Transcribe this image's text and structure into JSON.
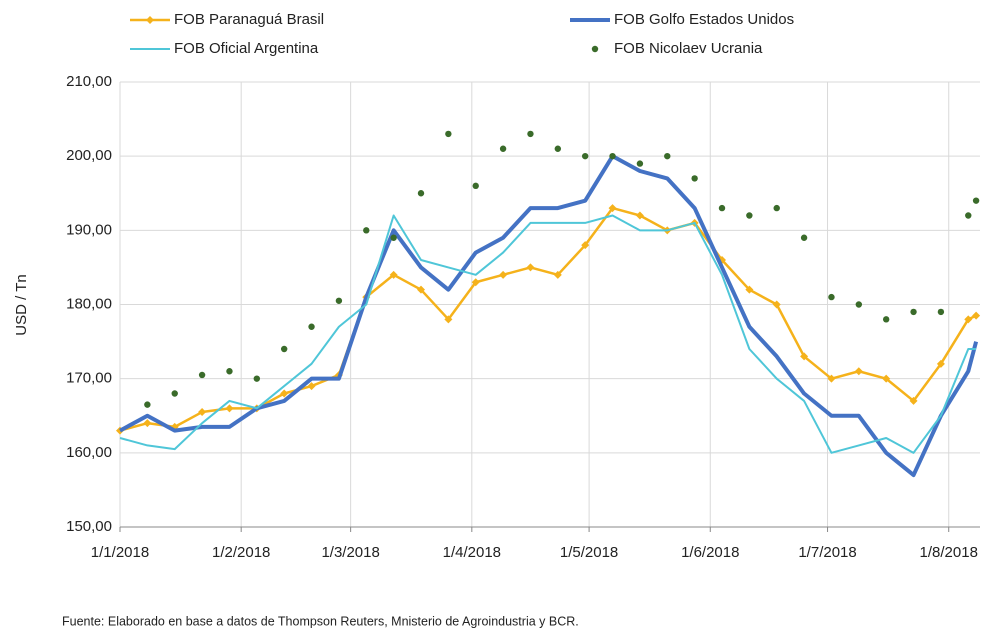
{
  "chart_data": {
    "type": "line",
    "y_label": "USD / Tn",
    "source": "Fuente: Elaborado en base a datos de Thompson Reuters, Mnisterio de Agroindustria y BCR.",
    "x": [
      "2018-01-01",
      "2018-01-08",
      "2018-01-15",
      "2018-01-22",
      "2018-01-29",
      "2018-02-05",
      "2018-02-12",
      "2018-02-19",
      "2018-02-26",
      "2018-03-05",
      "2018-03-12",
      "2018-03-19",
      "2018-03-26",
      "2018-04-02",
      "2018-04-09",
      "2018-04-16",
      "2018-04-23",
      "2018-04-30",
      "2018-05-07",
      "2018-05-14",
      "2018-05-21",
      "2018-05-28",
      "2018-06-04",
      "2018-06-11",
      "2018-06-18",
      "2018-06-25",
      "2018-07-02",
      "2018-07-09",
      "2018-07-16",
      "2018-07-23",
      "2018-07-30",
      "2018-08-06",
      "2018-08-08"
    ],
    "series": [
      {
        "name": "FOB Paranaguá Brasil",
        "color": "#f5b21b",
        "marker": "diamond",
        "values": [
          163,
          164,
          163.5,
          165.5,
          166,
          166,
          168,
          169,
          170.5,
          181,
          184,
          182,
          178,
          183,
          184,
          185,
          184,
          188,
          193,
          192,
          190,
          191,
          186,
          182,
          180,
          173,
          170,
          171,
          170,
          167,
          172,
          178,
          178.5
        ]
      },
      {
        "name": "FOB Golfo Estados Unidos",
        "color": "#4472c4",
        "marker": "none",
        "width": 4,
        "values": [
          163,
          165,
          163,
          163.5,
          163.5,
          166,
          167,
          170,
          170,
          181,
          190,
          185,
          182,
          187,
          189,
          193,
          193,
          194,
          200,
          198,
          197,
          193,
          185,
          177,
          173,
          168,
          165,
          165,
          160,
          157,
          165,
          171,
          175
        ]
      },
      {
        "name": "FOB Oficial Argentina",
        "color": "#4fc6d8",
        "marker": "none",
        "width": 2,
        "values": [
          162,
          161,
          160.5,
          164,
          167,
          166,
          169,
          172,
          177,
          180,
          192,
          186,
          185,
          184,
          187,
          191,
          191,
          191,
          192,
          190,
          190,
          191,
          184,
          174,
          170,
          167,
          160,
          161,
          162,
          160,
          165,
          174,
          174
        ]
      },
      {
        "name": "FOB Nicolaev Ucrania",
        "color": "#3a6b2a",
        "marker": "dot",
        "values": [
          null,
          166.5,
          168,
          170.5,
          171,
          170,
          174,
          177,
          180.5,
          190,
          189,
          195,
          203,
          196,
          201,
          203,
          201,
          200,
          200,
          199,
          200,
          197,
          193,
          192,
          193,
          189,
          181,
          180,
          178,
          179,
          179,
          192,
          194
        ]
      }
    ],
    "xlim": [
      "2018-01-01",
      "2018-08-09"
    ],
    "xticks": [
      {
        "value": "2018-01-01",
        "label": "1/1/2018"
      },
      {
        "value": "2018-02-01",
        "label": "1/2/2018"
      },
      {
        "value": "2018-03-01",
        "label": "1/3/2018"
      },
      {
        "value": "2018-04-01",
        "label": "1/4/2018"
      },
      {
        "value": "2018-05-01",
        "label": "1/5/2018"
      },
      {
        "value": "2018-06-01",
        "label": "1/6/2018"
      },
      {
        "value": "2018-07-01",
        "label": "1/7/2018"
      },
      {
        "value": "2018-08-01",
        "label": "1/8/2018"
      }
    ],
    "ylim": [
      150,
      210
    ],
    "yticks": [
      {
        "value": 150,
        "label": "150,00"
      },
      {
        "value": 160,
        "label": "160,00"
      },
      {
        "value": 170,
        "label": "170,00"
      },
      {
        "value": 180,
        "label": "180,00"
      },
      {
        "value": 190,
        "label": "190,00"
      },
      {
        "value": 200,
        "label": "200,00"
      },
      {
        "value": 210,
        "label": "210,00"
      }
    ],
    "grid": true
  }
}
